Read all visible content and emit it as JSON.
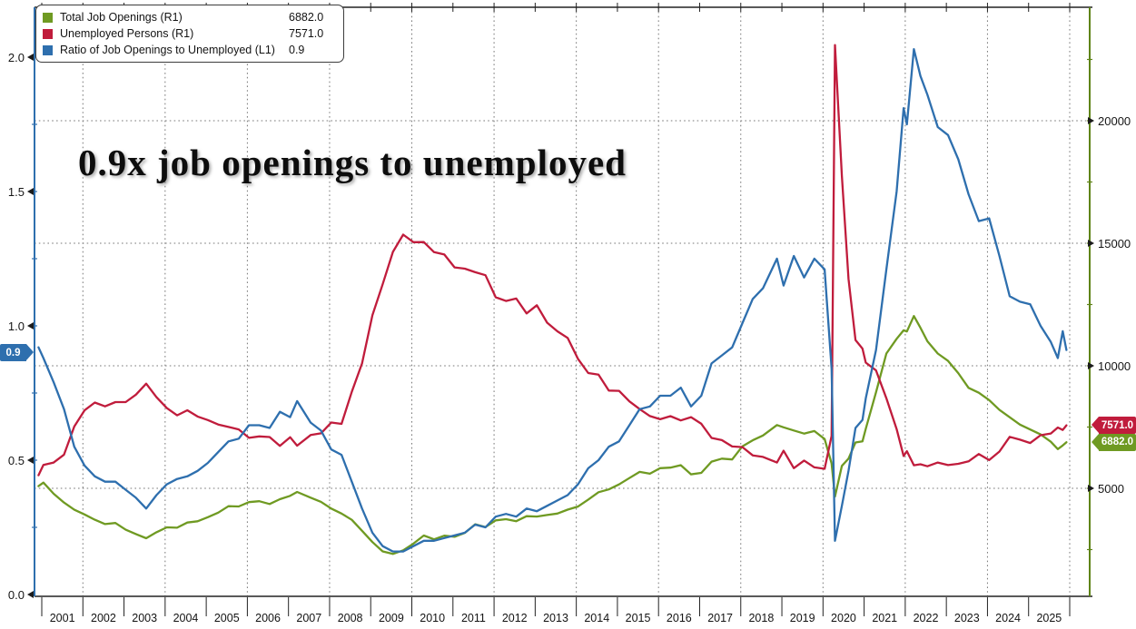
{
  "annotation": {
    "title": "0.9x job openings to unemployed"
  },
  "legend": {
    "items": [
      {
        "label": "Total Job Openings (R1)",
        "value": "6882.0",
        "color": "#6f9a22"
      },
      {
        "label": "Unemployed Persons (R1)",
        "value": "7571.0",
        "color": "#c01c3c"
      },
      {
        "label": "Ratio of Job Openings to Unemployed (L1)",
        "value": "0.9",
        "color": "#2e6fae"
      }
    ]
  },
  "badges": {
    "left": {
      "label": "0.9",
      "value": 0.9,
      "color": "#2e6fae"
    },
    "right": [
      {
        "label": "7571.0",
        "value": 7571,
        "color": "#c01c3c"
      },
      {
        "label": "6882.0",
        "value": 6882,
        "color": "#6f9a22"
      }
    ]
  },
  "axes": {
    "left": {
      "tick_labels": [
        "2.0",
        "1.5",
        "1.0",
        "0.5",
        "0.0"
      ],
      "tick_values": [
        2.0,
        1.5,
        1.0,
        0.5,
        0.0
      ],
      "minor_step": 0.25,
      "color": "#2e6fae"
    },
    "right": {
      "tick_labels": [
        "20000",
        "15000",
        "10000",
        "5000"
      ],
      "tick_values": [
        20000,
        15000,
        10000,
        5000
      ],
      "minor_step": 2500,
      "color": "#5f8418"
    },
    "bottom": {
      "year_labels": [
        "2001",
        "2002",
        "2003",
        "2004",
        "2005",
        "2006",
        "2007",
        "2008",
        "2009",
        "2010",
        "2011",
        "2012",
        "2013",
        "2014",
        "2015",
        "2016",
        "2017",
        "2018",
        "2019",
        "2020",
        "2021",
        "2022",
        "2023",
        "2024",
        "2025"
      ]
    }
  },
  "chart_data": {
    "type": "line",
    "title": "0.9x job openings to unemployed",
    "legend_position": "top-left",
    "grid": true,
    "x_range": [
      2000.9,
      2026.1
    ],
    "axis_left": {
      "range": [
        0,
        2.19
      ],
      "ticks": [
        0,
        0.5,
        1.0,
        1.5,
        2.0
      ]
    },
    "axis_right": {
      "range": [
        600,
        24600
      ],
      "ticks": [
        5000,
        10000,
        15000,
        20000
      ]
    },
    "x": [
      2000.92,
      2001.04,
      2001.29,
      2001.54,
      2001.79,
      2002.04,
      2002.29,
      2002.54,
      2002.79,
      2003.04,
      2003.29,
      2003.54,
      2003.79,
      2004.04,
      2004.29,
      2004.54,
      2004.79,
      2005.04,
      2005.29,
      2005.54,
      2005.79,
      2006.04,
      2006.29,
      2006.54,
      2006.79,
      2007.04,
      2007.21,
      2007.54,
      2007.79,
      2008.04,
      2008.29,
      2008.54,
      2008.79,
      2009.04,
      2009.29,
      2009.54,
      2009.79,
      2010.04,
      2010.29,
      2010.54,
      2010.79,
      2011.04,
      2011.29,
      2011.54,
      2011.79,
      2012.04,
      2012.29,
      2012.54,
      2012.79,
      2013.04,
      2013.29,
      2013.54,
      2013.79,
      2014.04,
      2014.29,
      2014.54,
      2014.79,
      2015.04,
      2015.29,
      2015.54,
      2015.79,
      2016.04,
      2016.29,
      2016.54,
      2016.79,
      2017.04,
      2017.29,
      2017.54,
      2017.79,
      2018.04,
      2018.29,
      2018.54,
      2018.88,
      2019.04,
      2019.29,
      2019.54,
      2019.79,
      2020.04,
      2020.21,
      2020.29,
      2020.46,
      2020.62,
      2020.79,
      2020.96,
      2021.04,
      2021.29,
      2021.54,
      2021.79,
      2021.96,
      2022.04,
      2022.21,
      2022.37,
      2022.54,
      2022.79,
      2023.04,
      2023.29,
      2023.54,
      2023.79,
      2024.04,
      2024.29,
      2024.54,
      2024.79,
      2025.04,
      2025.29,
      2025.54,
      2025.71,
      2025.83,
      2025.92
    ],
    "series": [
      {
        "name": "Total Job Openings (R1)",
        "axis": "right",
        "color": "#6f9a22",
        "unit": "thousands",
        "values": [
          5088,
          5234,
          4778,
          4419,
          4127,
          3933,
          3720,
          3539,
          3586,
          3310,
          3135,
          2962,
          3206,
          3406,
          3391,
          3604,
          3656,
          3822,
          4008,
          4269,
          4260,
          4438,
          4475,
          4361,
          4555,
          4694,
          4850,
          4617,
          4447,
          4174,
          3972,
          3714,
          3267,
          2806,
          2426,
          2322,
          2471,
          2744,
          3075,
          2918,
          3066,
          3021,
          3181,
          3534,
          3420,
          3693,
          3740,
          3661,
          3864,
          3849,
          3912,
          3972,
          4128,
          4256,
          4542,
          4839,
          4956,
          5158,
          5420,
          5669,
          5595,
          5821,
          5845,
          5945,
          5570,
          5628,
          6090,
          6212,
          6177,
          6716,
          6958,
          7156,
          7580,
          7488,
          7360,
          7234,
          7337,
          7012,
          6011,
          4664,
          5914,
          6210,
          6872,
          6917,
          7425,
          8920,
          10500,
          11100,
          11448,
          11400,
          12030,
          11550,
          11000,
          10500,
          10200,
          9700,
          9100,
          8900,
          8600,
          8200,
          7900,
          7600,
          7400,
          7200,
          6900,
          6600,
          6750,
          6882
        ]
      },
      {
        "name": "Unemployed Persons (R1)",
        "axis": "right",
        "color": "#c01c3c",
        "unit": "thousands",
        "values": [
          5534,
          5954,
          6050,
          6373,
          7523,
          8182,
          8501,
          8346,
          8520,
          8520,
          8823,
          9270,
          8717,
          8273,
          7978,
          8185,
          7929,
          7784,
          7602,
          7504,
          7405,
          7059,
          7118,
          7091,
          6735,
          7085,
          6740,
          7173,
          7246,
          7685,
          7631,
          8937,
          10097,
          12058,
          13325,
          14649,
          15352,
          15046,
          15049,
          14637,
          14542,
          14013,
          13962,
          13817,
          13696,
          12797,
          12646,
          12745,
          12138,
          12471,
          11760,
          11408,
          11136,
          10280,
          9702,
          9637,
          8990,
          8979,
          8549,
          8235,
          7947,
          7820,
          7943,
          7769,
          7904,
          7635,
          7056,
          6967,
          6708,
          6682,
          6346,
          6280,
          6050,
          6535,
          5824,
          6134,
          5857,
          5796,
          7140,
          23090,
          17750,
          13550,
          11050,
          10700,
          10130,
          9812,
          8675,
          7419,
          6319,
          6513,
          5941,
          5983,
          5900,
          6050,
          5950,
          6000,
          6100,
          6400,
          6150,
          6500,
          7100,
          6984,
          6849,
          7165,
          7236,
          7480,
          7380,
          7571
        ]
      },
      {
        "name": "Ratio of Job Openings to Unemployed (L1)",
        "axis": "left",
        "color": "#2e6fae",
        "unit": "ratio",
        "values": [
          0.92,
          0.88,
          0.79,
          0.69,
          0.55,
          0.48,
          0.44,
          0.42,
          0.42,
          0.39,
          0.36,
          0.32,
          0.37,
          0.41,
          0.43,
          0.44,
          0.46,
          0.49,
          0.53,
          0.57,
          0.58,
          0.63,
          0.63,
          0.62,
          0.68,
          0.66,
          0.72,
          0.64,
          0.61,
          0.54,
          0.52,
          0.42,
          0.32,
          0.23,
          0.18,
          0.16,
          0.16,
          0.18,
          0.2,
          0.2,
          0.21,
          0.22,
          0.23,
          0.26,
          0.25,
          0.29,
          0.3,
          0.29,
          0.32,
          0.31,
          0.33,
          0.35,
          0.37,
          0.41,
          0.47,
          0.5,
          0.55,
          0.57,
          0.63,
          0.69,
          0.7,
          0.74,
          0.74,
          0.77,
          0.7,
          0.74,
          0.86,
          0.89,
          0.92,
          1.01,
          1.1,
          1.14,
          1.25,
          1.15,
          1.26,
          1.18,
          1.25,
          1.21,
          0.84,
          0.2,
          0.33,
          0.46,
          0.62,
          0.65,
          0.73,
          0.91,
          1.21,
          1.5,
          1.81,
          1.75,
          2.03,
          1.93,
          1.86,
          1.74,
          1.71,
          1.62,
          1.49,
          1.39,
          1.4,
          1.26,
          1.11,
          1.09,
          1.08,
          1.0,
          0.94,
          0.88,
          0.98,
          0.91
        ]
      }
    ]
  }
}
